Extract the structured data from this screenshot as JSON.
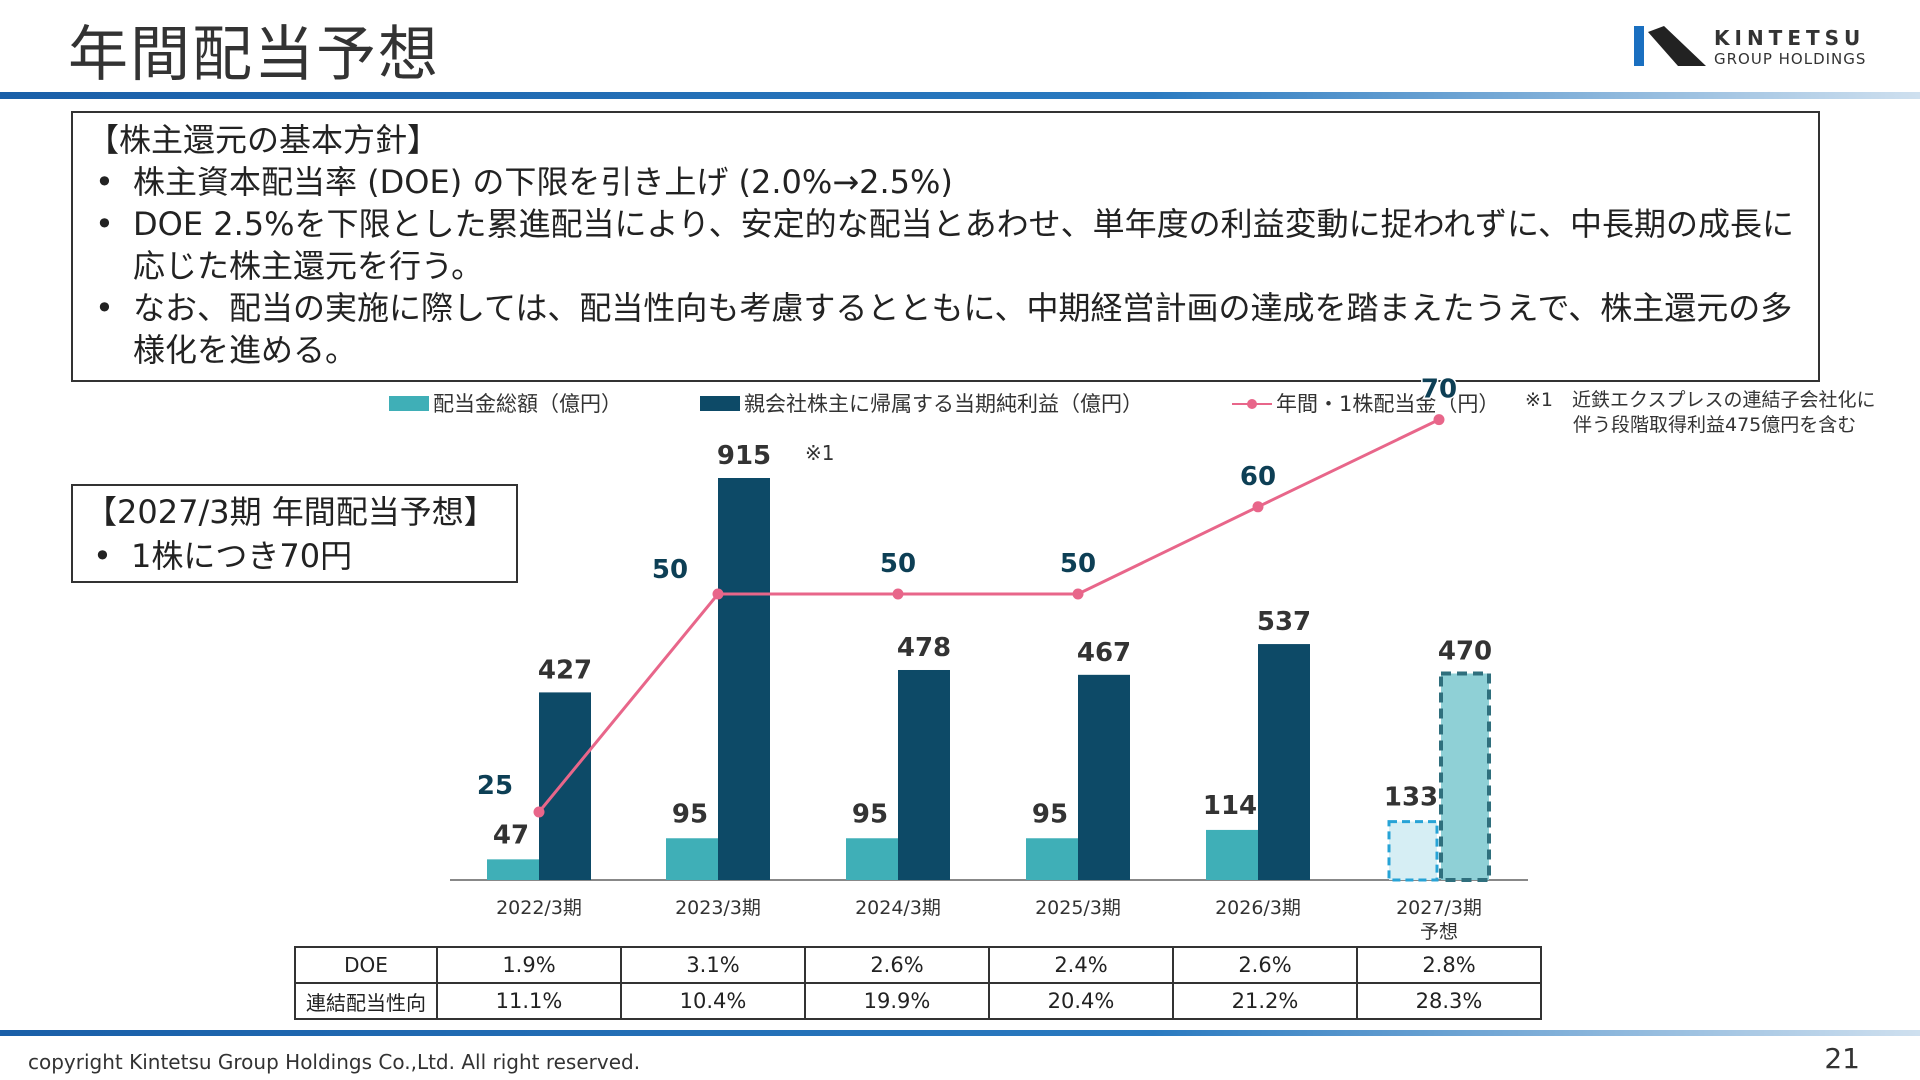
{
  "header": {
    "title": "年間配当予想",
    "logo_line1": "KINTETSU",
    "logo_line2": "GROUP HOLDINGS"
  },
  "policy": {
    "heading": "【株主還元の基本方針】",
    "bullets": [
      "株主資本配当率 (DOE) の下限を引き上げ (2.0%→2.5%)",
      "DOE 2.5%を下限とした累進配当により、安定的な配当とあわせ、単年度の利益変動に捉われずに、中長期の成長に応じた株主還元を行う。",
      "なお、配当の実施に際しては、配当性向も考慮するとともに、中期経営計画の達成を踏まえたうえで、株主還元の多様化を進める。"
    ]
  },
  "forecast": {
    "heading": "【2027/3期 年間配当予想】",
    "bullet": "1株につき70円"
  },
  "legend": {
    "dividend_total": "配当金総額（億円）",
    "net_income": "親会社株主に帰属する当期純利益（億円）",
    "dps": "年間・1株配当金（円）"
  },
  "note": {
    "line1": "※1　近鉄エクスプレスの連結子会社化に",
    "line2": "伴う段階取得利益475億円を含む",
    "marker": "※1"
  },
  "chart_data": {
    "type": "bar",
    "categories": [
      "2022/3期",
      "2023/3期",
      "2024/3期",
      "2025/3期",
      "2026/3期",
      "2027/3期 予想"
    ],
    "forecast_index": 5,
    "series": [
      {
        "name": "配当金総額（億円）",
        "values": [
          47,
          95,
          95,
          95,
          114,
          133
        ],
        "color": "#3fafb7",
        "type": "bar"
      },
      {
        "name": "親会社株主に帰属する当期純利益（億円）",
        "values": [
          427,
          915,
          478,
          467,
          537,
          470
        ],
        "color": "#0d4a67",
        "type": "bar"
      },
      {
        "name": "年間・1株配当金（円）",
        "values": [
          25,
          50,
          50,
          50,
          60,
          70
        ],
        "color": "#e8668a",
        "type": "line"
      }
    ],
    "bar_ylim": [
      0,
      915
    ],
    "line_ylim": [
      0,
      100
    ],
    "grid": false,
    "legend_position": "top"
  },
  "ratio_table": {
    "rows": [
      {
        "label": "DOE",
        "values": [
          "1.9%",
          "3.1%",
          "2.6%",
          "2.4%",
          "2.6%",
          "2.8%"
        ]
      },
      {
        "label": "連結配当性向",
        "values": [
          "11.1%",
          "10.4%",
          "19.9%",
          "20.4%",
          "21.2%",
          "28.3%"
        ]
      }
    ]
  },
  "footer": {
    "copyright": "copyright Kintetsu Group Holdings Co.,Ltd. All right reserved.",
    "page": "21"
  },
  "colors": {
    "accent_blue": "#1a5fa8",
    "teal": "#3fafb7",
    "navy": "#0d4a67",
    "pink": "#e8668a",
    "forecast_teal_fill": "#8fd0d6",
    "forecast_light_fill": "#d6eef4"
  }
}
